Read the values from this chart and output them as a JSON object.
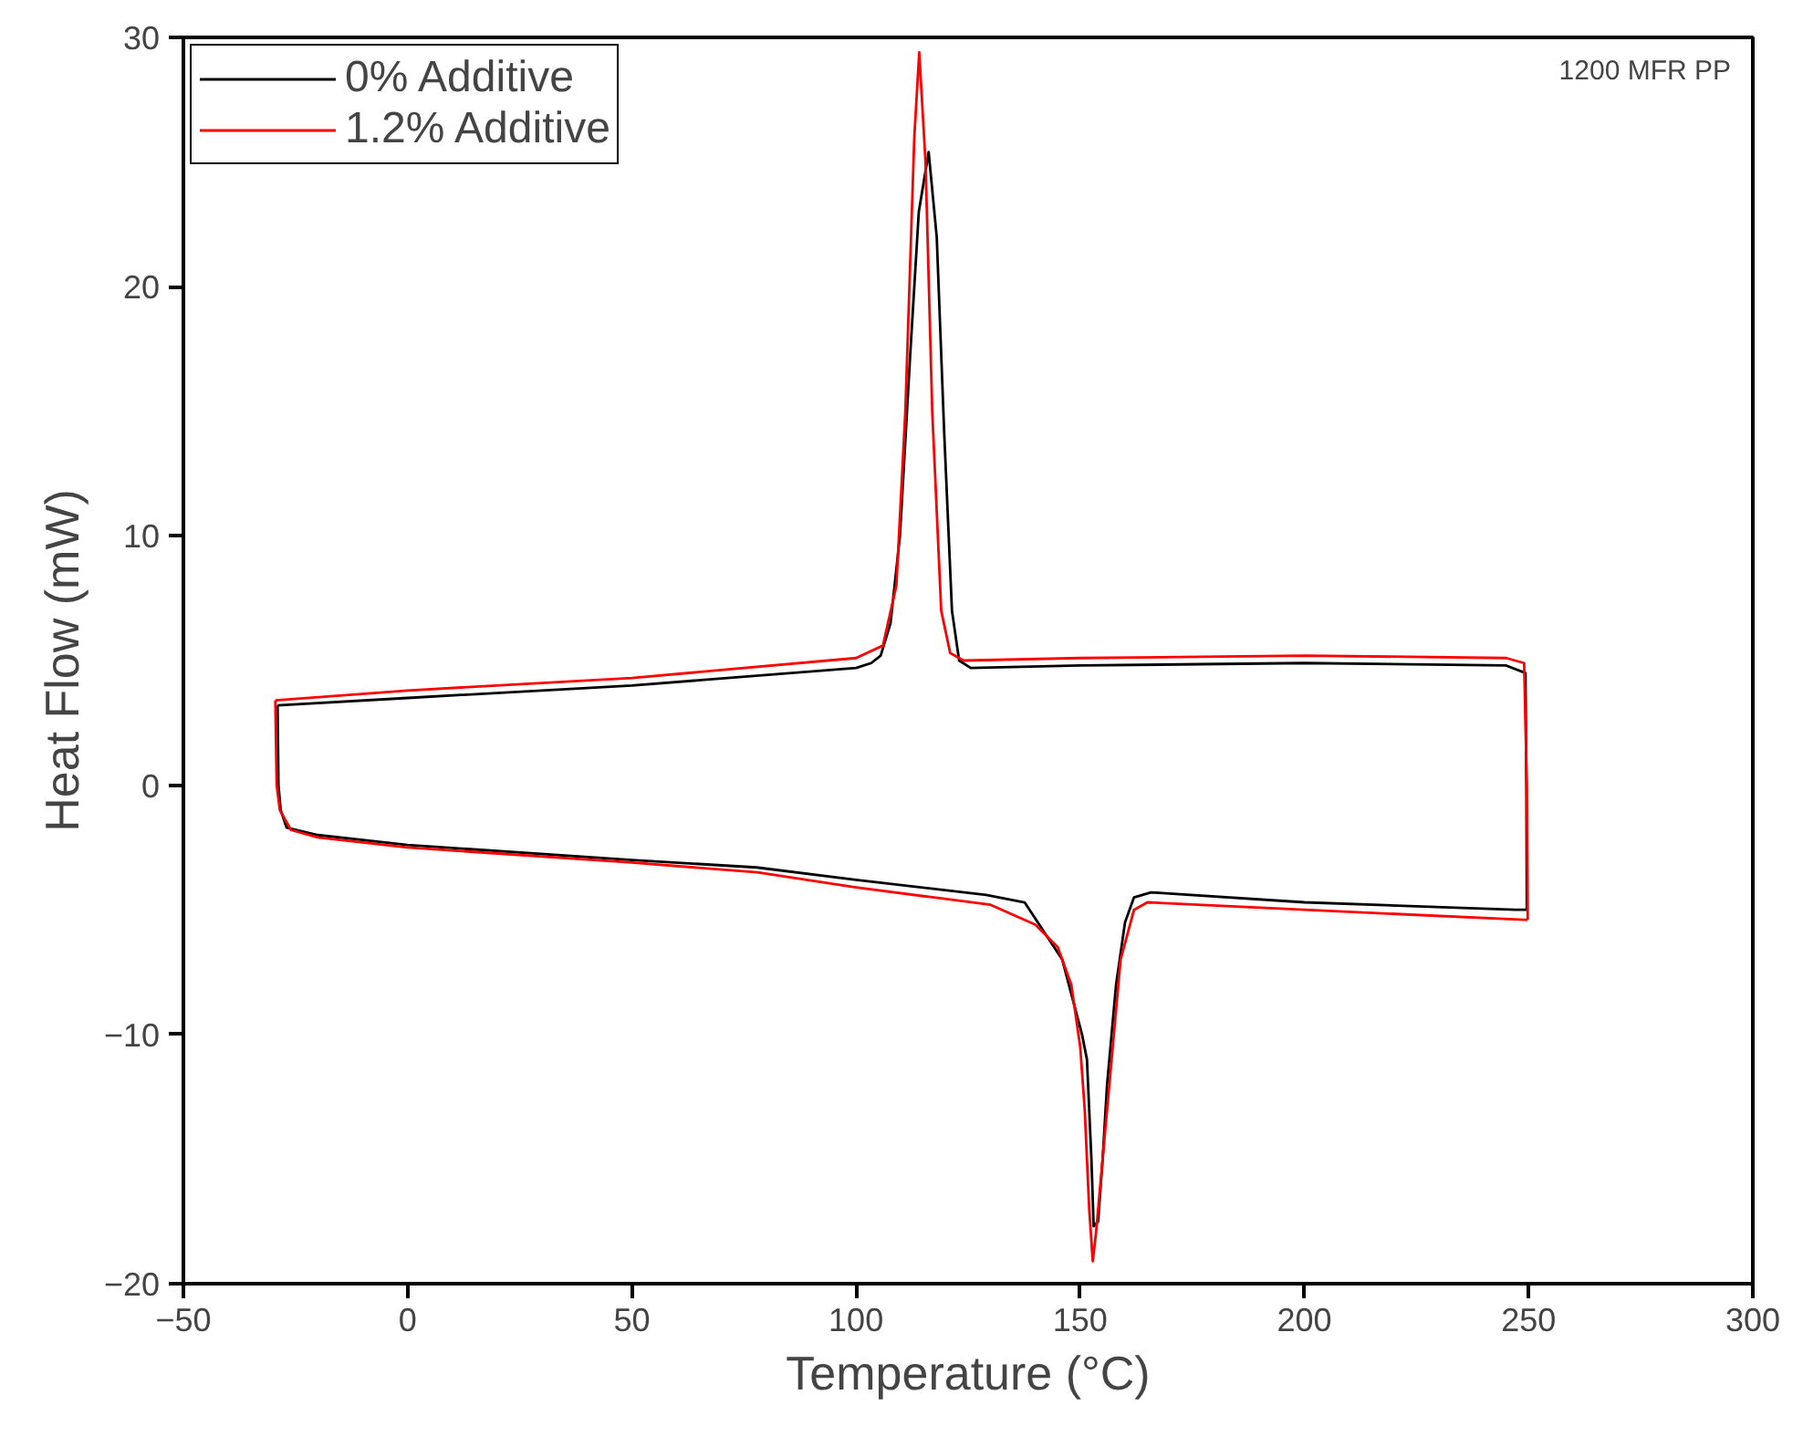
{
  "chart_data": {
    "type": "line",
    "xlabel": "Temperature (°C)",
    "ylabel": "Heat Flow (mW)",
    "annotations": [
      "1200 MFR PP"
    ],
    "xlim": [
      -50,
      300
    ],
    "xticks": [
      -50,
      0,
      50,
      100,
      150,
      200,
      250,
      300
    ],
    "ylim": [
      -20,
      30
    ],
    "yticks": [
      -20,
      -10,
      0,
      10,
      20,
      30
    ],
    "grid": false,
    "legend": "top left",
    "marker": "none",
    "line_style": "solid",
    "series": [
      {
        "name": "0% Additive",
        "color": "#000000",
        "x": [
          -29,
          0,
          50,
          100,
          103.4,
          105.5,
          107.7,
          109.8,
          112,
          114,
          116.2,
          118,
          119.7,
          121.4,
          123,
          125.6,
          150,
          200,
          245,
          249.3,
          249.5,
          249.6
        ],
        "values": [
          3.2,
          3.5,
          4.0,
          4.7,
          4.9,
          5.2,
          6.5,
          10,
          17,
          23,
          25.4,
          22,
          14,
          7,
          5,
          4.7,
          4.8,
          4.9,
          4.8,
          4.5,
          0,
          -5.0
        ]
      },
      {
        "color": "#000000",
        "x": [
          -29,
          -28.8,
          -28.3,
          -27,
          -20,
          0,
          50,
          77.8,
          100,
          129,
          137.6,
          146,
          150.4,
          151.5,
          152.5,
          153,
          154,
          155,
          156,
          158,
          160,
          162,
          165.8,
          200,
          247,
          249.6
        ],
        "values": [
          3.2,
          0,
          -1.0,
          -1.7,
          -2.0,
          -2.4,
          -3.0,
          -3.3,
          -3.8,
          -4.4,
          -4.7,
          -7.0,
          -10,
          -11,
          -15,
          -17.7,
          -17.5,
          -15,
          -12,
          -8,
          -5.5,
          -4.5,
          -4.3,
          -4.7,
          -5.0,
          -5.0
        ]
      },
      {
        "name": "1.2% Additive",
        "color": "#ff0000",
        "x": [
          -29.5,
          0,
          50,
          100,
          106,
          109,
          111,
          113,
          114.1,
          115.5,
          117,
          119,
          121,
          124,
          150,
          200,
          245,
          249,
          249.6,
          249.8
        ],
        "values": [
          3.4,
          3.8,
          4.3,
          5.1,
          5.6,
          8,
          15,
          26,
          29.4,
          25,
          15,
          7,
          5.3,
          5.0,
          5.1,
          5.2,
          5.1,
          4.9,
          0,
          -5.4
        ]
      },
      {
        "color": "#ff0000",
        "x": [
          -29.5,
          -29.2,
          -28.5,
          -26,
          -20,
          0,
          50,
          78,
          100,
          130,
          140,
          145,
          148,
          150,
          151,
          152,
          152.8,
          153.5,
          155,
          157,
          159,
          162,
          165,
          200,
          249,
          249.8
        ],
        "values": [
          3.4,
          0,
          -1.0,
          -1.8,
          -2.1,
          -2.5,
          -3.1,
          -3.5,
          -4.1,
          -4.8,
          -5.6,
          -6.5,
          -8,
          -10.5,
          -13,
          -17,
          -19.1,
          -18,
          -15,
          -11,
          -7,
          -5,
          -4.7,
          -5.0,
          -5.4,
          -5.4
        ]
      }
    ]
  }
}
